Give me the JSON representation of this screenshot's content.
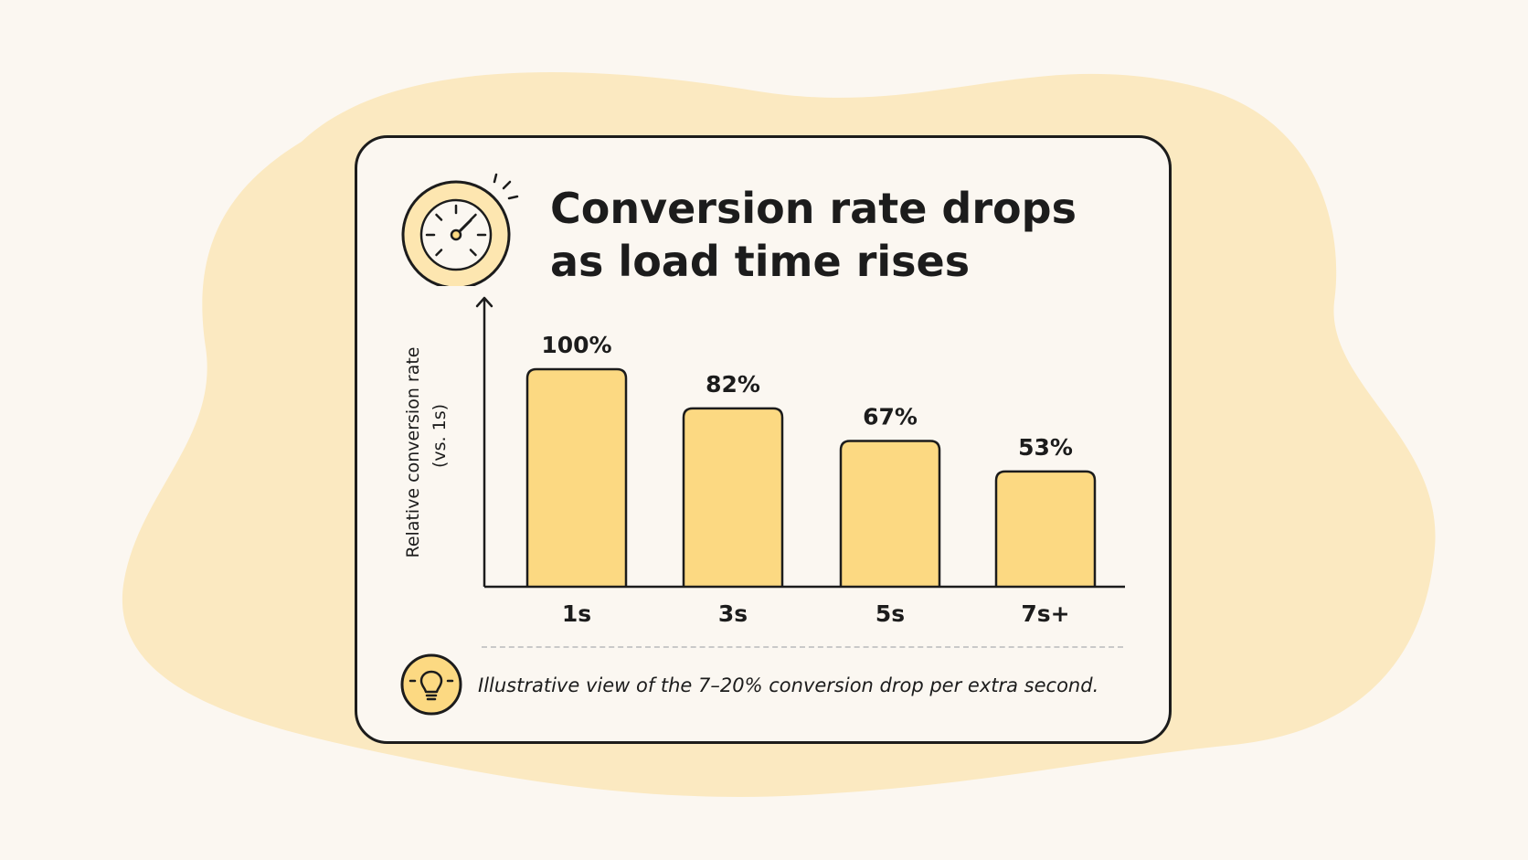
{
  "colors": {
    "background": "#fbf7f1",
    "blob": "#fbe9c1",
    "bar_fill": "#fcd982",
    "icon_fill": "#fde6b0",
    "outline": "#1c1c1c",
    "divider": "#c9c9c9"
  },
  "icons": {
    "header": "speedometer-icon",
    "footnote": "lightbulb-icon"
  },
  "footnote": "Illustrative view of the 7–20% conversion drop per extra second.",
  "chart_data": {
    "type": "bar",
    "title": "Conversion rate drops as load time rises",
    "xlabel": "",
    "ylabel": "Relative conversion rate",
    "ylabel_sub": "(vs. 1s)",
    "categories": [
      "1s",
      "3s",
      "5s",
      "7s+"
    ],
    "values": [
      100,
      82,
      67,
      53
    ],
    "value_labels": [
      "100%",
      "82%",
      "67%",
      "53%"
    ],
    "ylim": [
      0,
      100
    ],
    "grid": false,
    "legend": "none"
  }
}
